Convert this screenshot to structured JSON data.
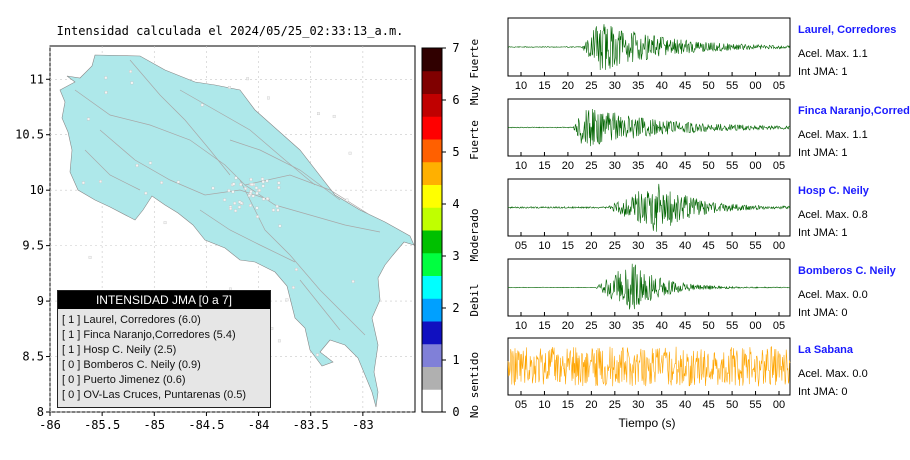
{
  "chart_data": [
    {
      "type": "map",
      "title": "Intensidad calculada el 2024/05/25_02:33:13_a.m.",
      "x_ticks": [
        "-86",
        "-85.5",
        "-85",
        "-84.5",
        "-84",
        "-83.5",
        "-83"
      ],
      "y_ticks": [
        "8",
        "8.5",
        "9",
        "9.5",
        "10",
        "10.5",
        "11"
      ],
      "xlim": [
        -86,
        -82.5
      ],
      "ylim": [
        8,
        11.3
      ],
      "map_fill": "#aee8ea",
      "legend": {
        "title": "INTENSIDAD JMA [0 a 7]",
        "entries": [
          "[ 1 ]  Laurel, Corredores (6.0)",
          "[ 1 ]  Finca Naranjo,Corredores (5.4)",
          "[ 1 ]  Hosp C. Neily (2.5)",
          "[ 0 ]  Bomberos C. Neily (0.9)",
          "[ 0 ]  Puerto Jimenez (0.6)",
          "[ 0 ]  OV-Las Cruces, Puntarenas (0.5)"
        ]
      }
    },
    {
      "type": "colorbar",
      "ticks": [
        "0",
        "1",
        "2",
        "3",
        "4",
        "5",
        "6",
        "7"
      ],
      "range": [
        0,
        7
      ],
      "category_labels": [
        "No sentido",
        "Debil",
        "Moderado",
        "Fuerte",
        "Muy Fuerte"
      ],
      "colors": [
        "#ffffff",
        "#b0b0b0",
        "#8080d8",
        "#1010c0",
        "#00a0ff",
        "#00ffff",
        "#00ff40",
        "#00c000",
        "#c0ff00",
        "#ffff00",
        "#ffb000",
        "#ff6000",
        "#ff0000",
        "#c00000",
        "#800000",
        "#300000"
      ]
    },
    {
      "type": "line",
      "xlabel": "Tiempo (s)",
      "traces": [
        {
          "name": "Laurel, Corredores",
          "acel_label": "Acel. Max. 1.1",
          "jma_label": "Int JMA: 1",
          "x_ticks": [
            "10",
            "15",
            "20",
            "25",
            "30",
            "35",
            "40",
            "45",
            "50",
            "55",
            "00",
            "05"
          ],
          "color": "#006400",
          "onset": 0.26,
          "peak_at": 0.32,
          "amplitude": 1.0,
          "decay": 0.22,
          "noise": 0.015
        },
        {
          "name": "Finca Naranjo,Corredores",
          "acel_label": "Acel. Max. 1.1",
          "jma_label": "Int JMA: 1",
          "x_ticks": [
            "10",
            "15",
            "20",
            "25",
            "30",
            "35",
            "40",
            "45",
            "50",
            "55",
            "00",
            "05"
          ],
          "color": "#006400",
          "onset": 0.23,
          "peak_at": 0.27,
          "amplitude": 0.85,
          "decay": 0.25,
          "noise": 0.015
        },
        {
          "name": "Hosp C. Neily",
          "acel_label": "Acel. Max. 0.8",
          "jma_label": "Int JMA: 1",
          "x_ticks": [
            "05",
            "10",
            "15",
            "20",
            "25",
            "30",
            "35",
            "40",
            "45",
            "50",
            "55",
            "00"
          ],
          "color": "#006400",
          "onset": 0.35,
          "peak_at": 0.53,
          "amplitude": 1.0,
          "decay": 0.12,
          "noise": 0.03
        },
        {
          "name": "Bomberos C. Neily",
          "acel_label": "Acel. Max. 0.0",
          "jma_label": "Int JMA: 0",
          "x_ticks": [
            "10",
            "15",
            "20",
            "25",
            "30",
            "35",
            "40",
            "45",
            "50",
            "55",
            "00",
            "05"
          ],
          "color": "#006400",
          "onset": 0.31,
          "peak_at": 0.44,
          "amplitude": 1.0,
          "decay": 0.1,
          "noise": 0.01
        },
        {
          "name": "La Sabana",
          "acel_label": "Acel. Max. 0.0",
          "jma_label": "Int JMA: 0",
          "x_ticks": [
            "05",
            "10",
            "15",
            "20",
            "25",
            "30",
            "35",
            "40",
            "45",
            "50",
            "55",
            "00"
          ],
          "color": "#ffa500",
          "onset": 0.0,
          "peak_at": 0.5,
          "amplitude": 0.0,
          "decay": 1.0,
          "noise": 0.75
        }
      ]
    }
  ]
}
